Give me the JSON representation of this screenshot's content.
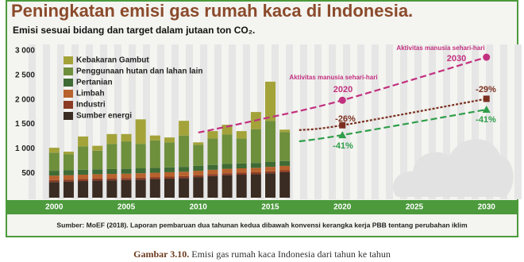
{
  "chart_data": {
    "type": "bar",
    "stacked": true,
    "title": "Peningkatan emisi gas rumah kaca di Indonesia.",
    "subtitle": "Emisi sesuai bidang dan target dalam jutaan ton CO₂.",
    "x": [
      2000,
      2001,
      2002,
      2003,
      2004,
      2005,
      2006,
      2007,
      2008,
      2009,
      2010,
      2011,
      2012,
      2013,
      2014,
      2015,
      2016
    ],
    "series": [
      {
        "name": "Sumber energi",
        "color": "#3a2c22",
        "values": [
          320,
          330,
          340,
          350,
          355,
          360,
          370,
          380,
          390,
          400,
          420,
          440,
          460,
          470,
          480,
          500,
          520
        ]
      },
      {
        "name": "Industri",
        "color": "#8b3b24",
        "values": [
          40,
          40,
          40,
          40,
          40,
          40,
          40,
          40,
          40,
          40,
          40,
          40,
          40,
          40,
          40,
          40,
          40
        ]
      },
      {
        "name": "Limbah",
        "color": "#b8622d",
        "values": [
          90,
          90,
          90,
          90,
          90,
          90,
          90,
          90,
          90,
          90,
          90,
          90,
          90,
          90,
          90,
          90,
          90
        ]
      },
      {
        "name": "Pertanian",
        "color": "#3f6b35",
        "values": [
          100,
          100,
          100,
          100,
          100,
          100,
          100,
          100,
          100,
          100,
          100,
          100,
          100,
          100,
          100,
          100,
          100
        ]
      },
      {
        "name": "Penggunaan hutan dan lahan lain",
        "color": "#6e8f3c",
        "values": [
          370,
          330,
          480,
          380,
          515,
          560,
          500,
          560,
          510,
          640,
          430,
          540,
          600,
          510,
          690,
          840,
          590
        ]
      },
      {
        "name": "Kebakaran Gambut",
        "color": "#a3a33a",
        "values": [
          100,
          50,
          200,
          100,
          200,
          150,
          500,
          100,
          100,
          300,
          50,
          150,
          200,
          150,
          350,
          800,
          50
        ]
      }
    ],
    "projections": [
      {
        "color": "#c2307f",
        "marker": "circle",
        "x": [
          2010,
          2014,
          2020,
          2030
        ],
        "values": [
          1330,
          1580,
          1990,
          2870
        ]
      },
      {
        "color": "#7a2f1f",
        "marker": "square",
        "x": [
          2017,
          2020,
          2030
        ],
        "values": [
          1380,
          1480,
          2020
        ]
      },
      {
        "color": "#2f9e4a",
        "marker": "triangle",
        "x": [
          2017,
          2020,
          2030
        ],
        "values": [
          1150,
          1280,
          1800
        ]
      }
    ],
    "annotations": [
      {
        "text": "Aktivitas manusia sehari-hari",
        "color": "#c2307f"
      },
      {
        "text": "2030",
        "color": "#c2307f"
      },
      {
        "text": "Aktivitas manusia sehari-hari",
        "color": "#c2307f"
      },
      {
        "text": "2020",
        "color": "#c2307f"
      },
      {
        "text": "-29%",
        "color": "#7a2f1f"
      },
      {
        "text": "-26%",
        "color": "#7a2f1f"
      },
      {
        "text": "-41%",
        "color": "#2f9e4a"
      },
      {
        "text": "-41%",
        "color": "#2f9e4a"
      }
    ],
    "xlim": [
      1998,
      2032
    ],
    "xticks": [
      2000,
      2005,
      2010,
      2015,
      2020,
      2025,
      2030
    ],
    "ylim": [
      0,
      3000
    ],
    "yticks": [
      500,
      {
        "value": 1000,
        "label": "1 000"
      },
      {
        "value": 1500,
        "label": "1 500"
      },
      {
        "value": 2000,
        "label": "2 000"
      },
      {
        "value": 2500,
        "label": "2 500"
      },
      {
        "value": 3000,
        "label": "3 000"
      }
    ],
    "source": "Sumber: MoEF (2018). Laporan pembaruan dua tahunan kedua dibawah konvensi kerangka kerja PBB tentang perubahan iklim",
    "caption_label": "Gambar 3.10.",
    "caption_text": "Emisi gas rumah kaca Indonesia dari tahun ke tahun"
  }
}
